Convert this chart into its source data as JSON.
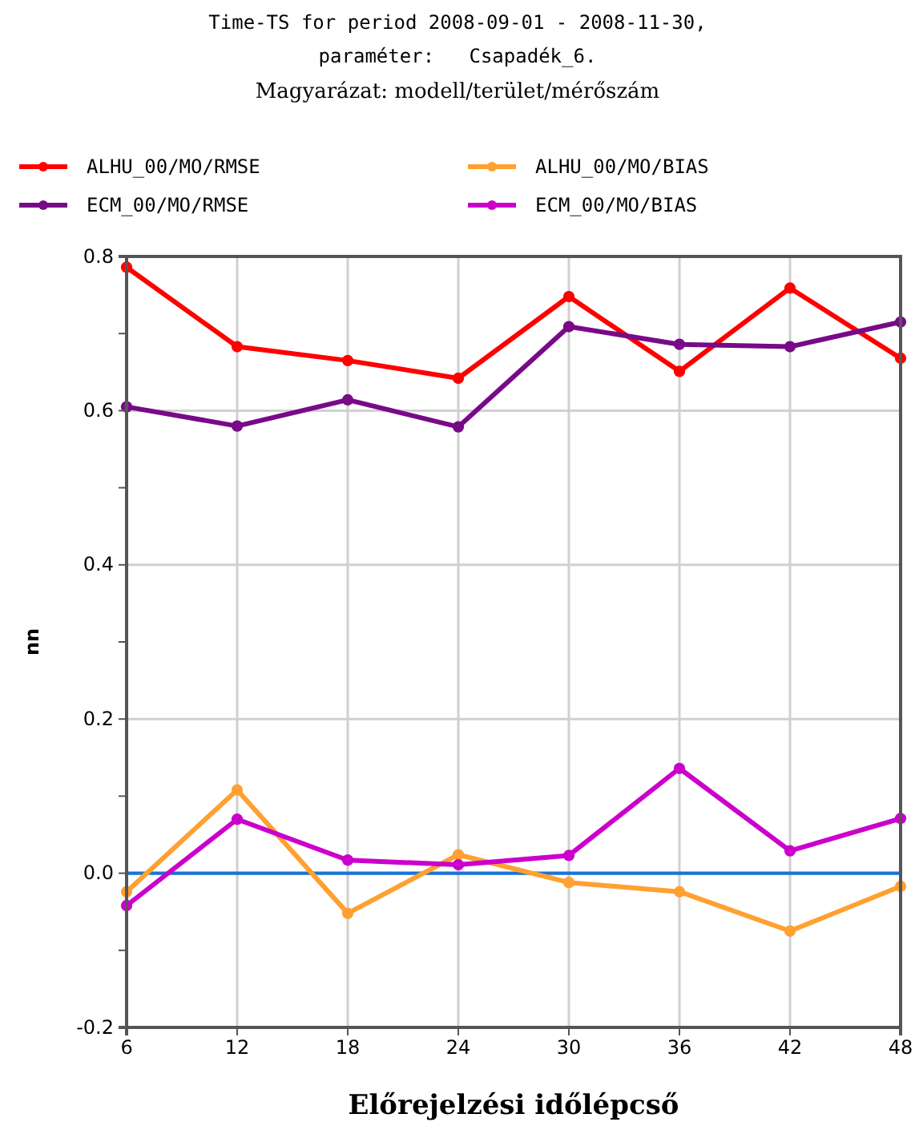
{
  "chart_data": {
    "type": "line",
    "title": "Time-TS for period 2008-09-01 - 2008-11-30,",
    "subtitle": "paraméter:   Csapadék_6.",
    "annotations": [
      "Magyarázat: modell/terület/mérőszám"
    ],
    "xlabel": "Előrejelzési időlépcső",
    "ylabel": "nn",
    "x": [
      6,
      12,
      18,
      24,
      30,
      36,
      42,
      48
    ],
    "series": [
      {
        "name": "ALHU_00/MO/RMSE",
        "color": "#ff0000",
        "values": [
          0.786,
          0.683,
          0.665,
          0.642,
          0.748,
          0.651,
          0.759,
          0.668
        ]
      },
      {
        "name": "ALHU_00/MO/BIAS",
        "color": "#ffa030",
        "values": [
          -0.024,
          0.108,
          -0.052,
          0.024,
          -0.012,
          -0.024,
          -0.075,
          -0.017
        ]
      },
      {
        "name": "ECM_00/MO/RMSE",
        "color": "#780a88",
        "values": [
          0.605,
          0.58,
          0.614,
          0.579,
          0.709,
          0.686,
          0.683,
          0.715
        ]
      },
      {
        "name": "ECM_00/MO/BIAS",
        "color": "#cc00cc",
        "values": [
          -0.042,
          0.07,
          0.017,
          0.011,
          0.023,
          0.136,
          0.029,
          0.071
        ]
      }
    ],
    "xlim": [
      6,
      48
    ],
    "xticks": [
      6,
      12,
      18,
      24,
      30,
      36,
      42,
      48
    ],
    "ylim": [
      -0.2,
      0.8
    ],
    "yticks": [
      {
        "value": -0.2,
        "label": "-0.2"
      },
      {
        "value": -0.1,
        "label": null
      },
      {
        "value": 0,
        "label": "0.0"
      },
      {
        "value": 0.1,
        "label": null
      },
      {
        "value": 0.2,
        "label": "0.2"
      },
      {
        "value": 0.3,
        "label": null
      },
      {
        "value": 0.4,
        "label": "0.4"
      },
      {
        "value": 0.5,
        "label": null
      },
      {
        "value": 0.6,
        "label": "0.6"
      },
      {
        "value": 0.7,
        "label": null
      },
      {
        "value": 0.8,
        "label": "0.8"
      }
    ],
    "ref_lines": [
      {
        "axis": "y",
        "value": 0,
        "color": "#1a74d6"
      }
    ],
    "grid": true,
    "legend": "top",
    "marker": "circle",
    "line_style": "solid"
  }
}
